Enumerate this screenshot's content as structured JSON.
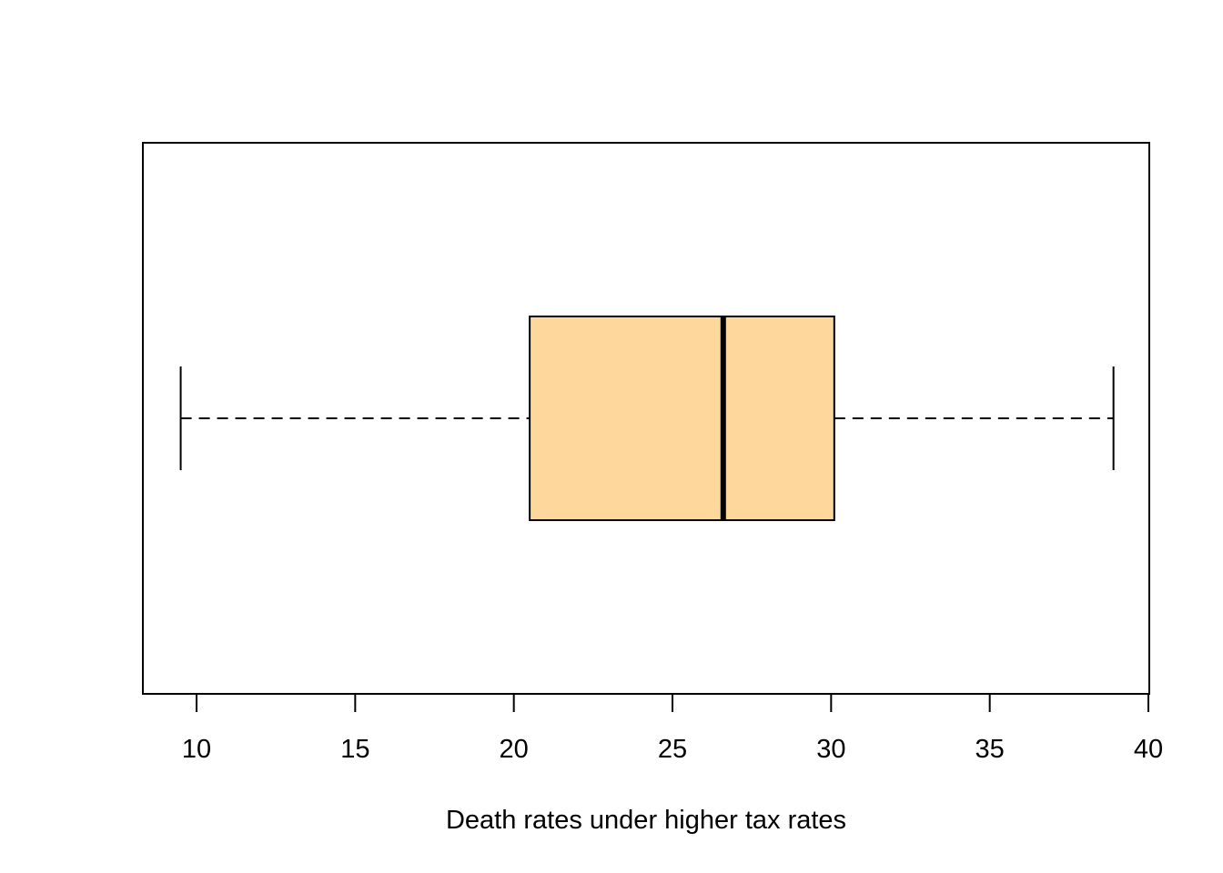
{
  "chart_data": {
    "type": "box",
    "orientation": "horizontal",
    "title": "",
    "xlabel": "Death rates under higher tax rates",
    "ylabel": "",
    "xlim": [
      8.3,
      40.0
    ],
    "xticks": [
      10,
      15,
      20,
      25,
      30,
      35,
      40
    ],
    "tick_labels": [
      "10",
      "15",
      "20",
      "25",
      "30",
      "35",
      "40"
    ],
    "grid": false,
    "legend": "none",
    "series": [
      {
        "min": 9.5,
        "q1": 20.5,
        "median": 26.6,
        "q3": 30.1,
        "max": 38.9
      }
    ],
    "colors": {
      "box_fill": "#FDD79B",
      "stroke": "#000000"
    }
  }
}
